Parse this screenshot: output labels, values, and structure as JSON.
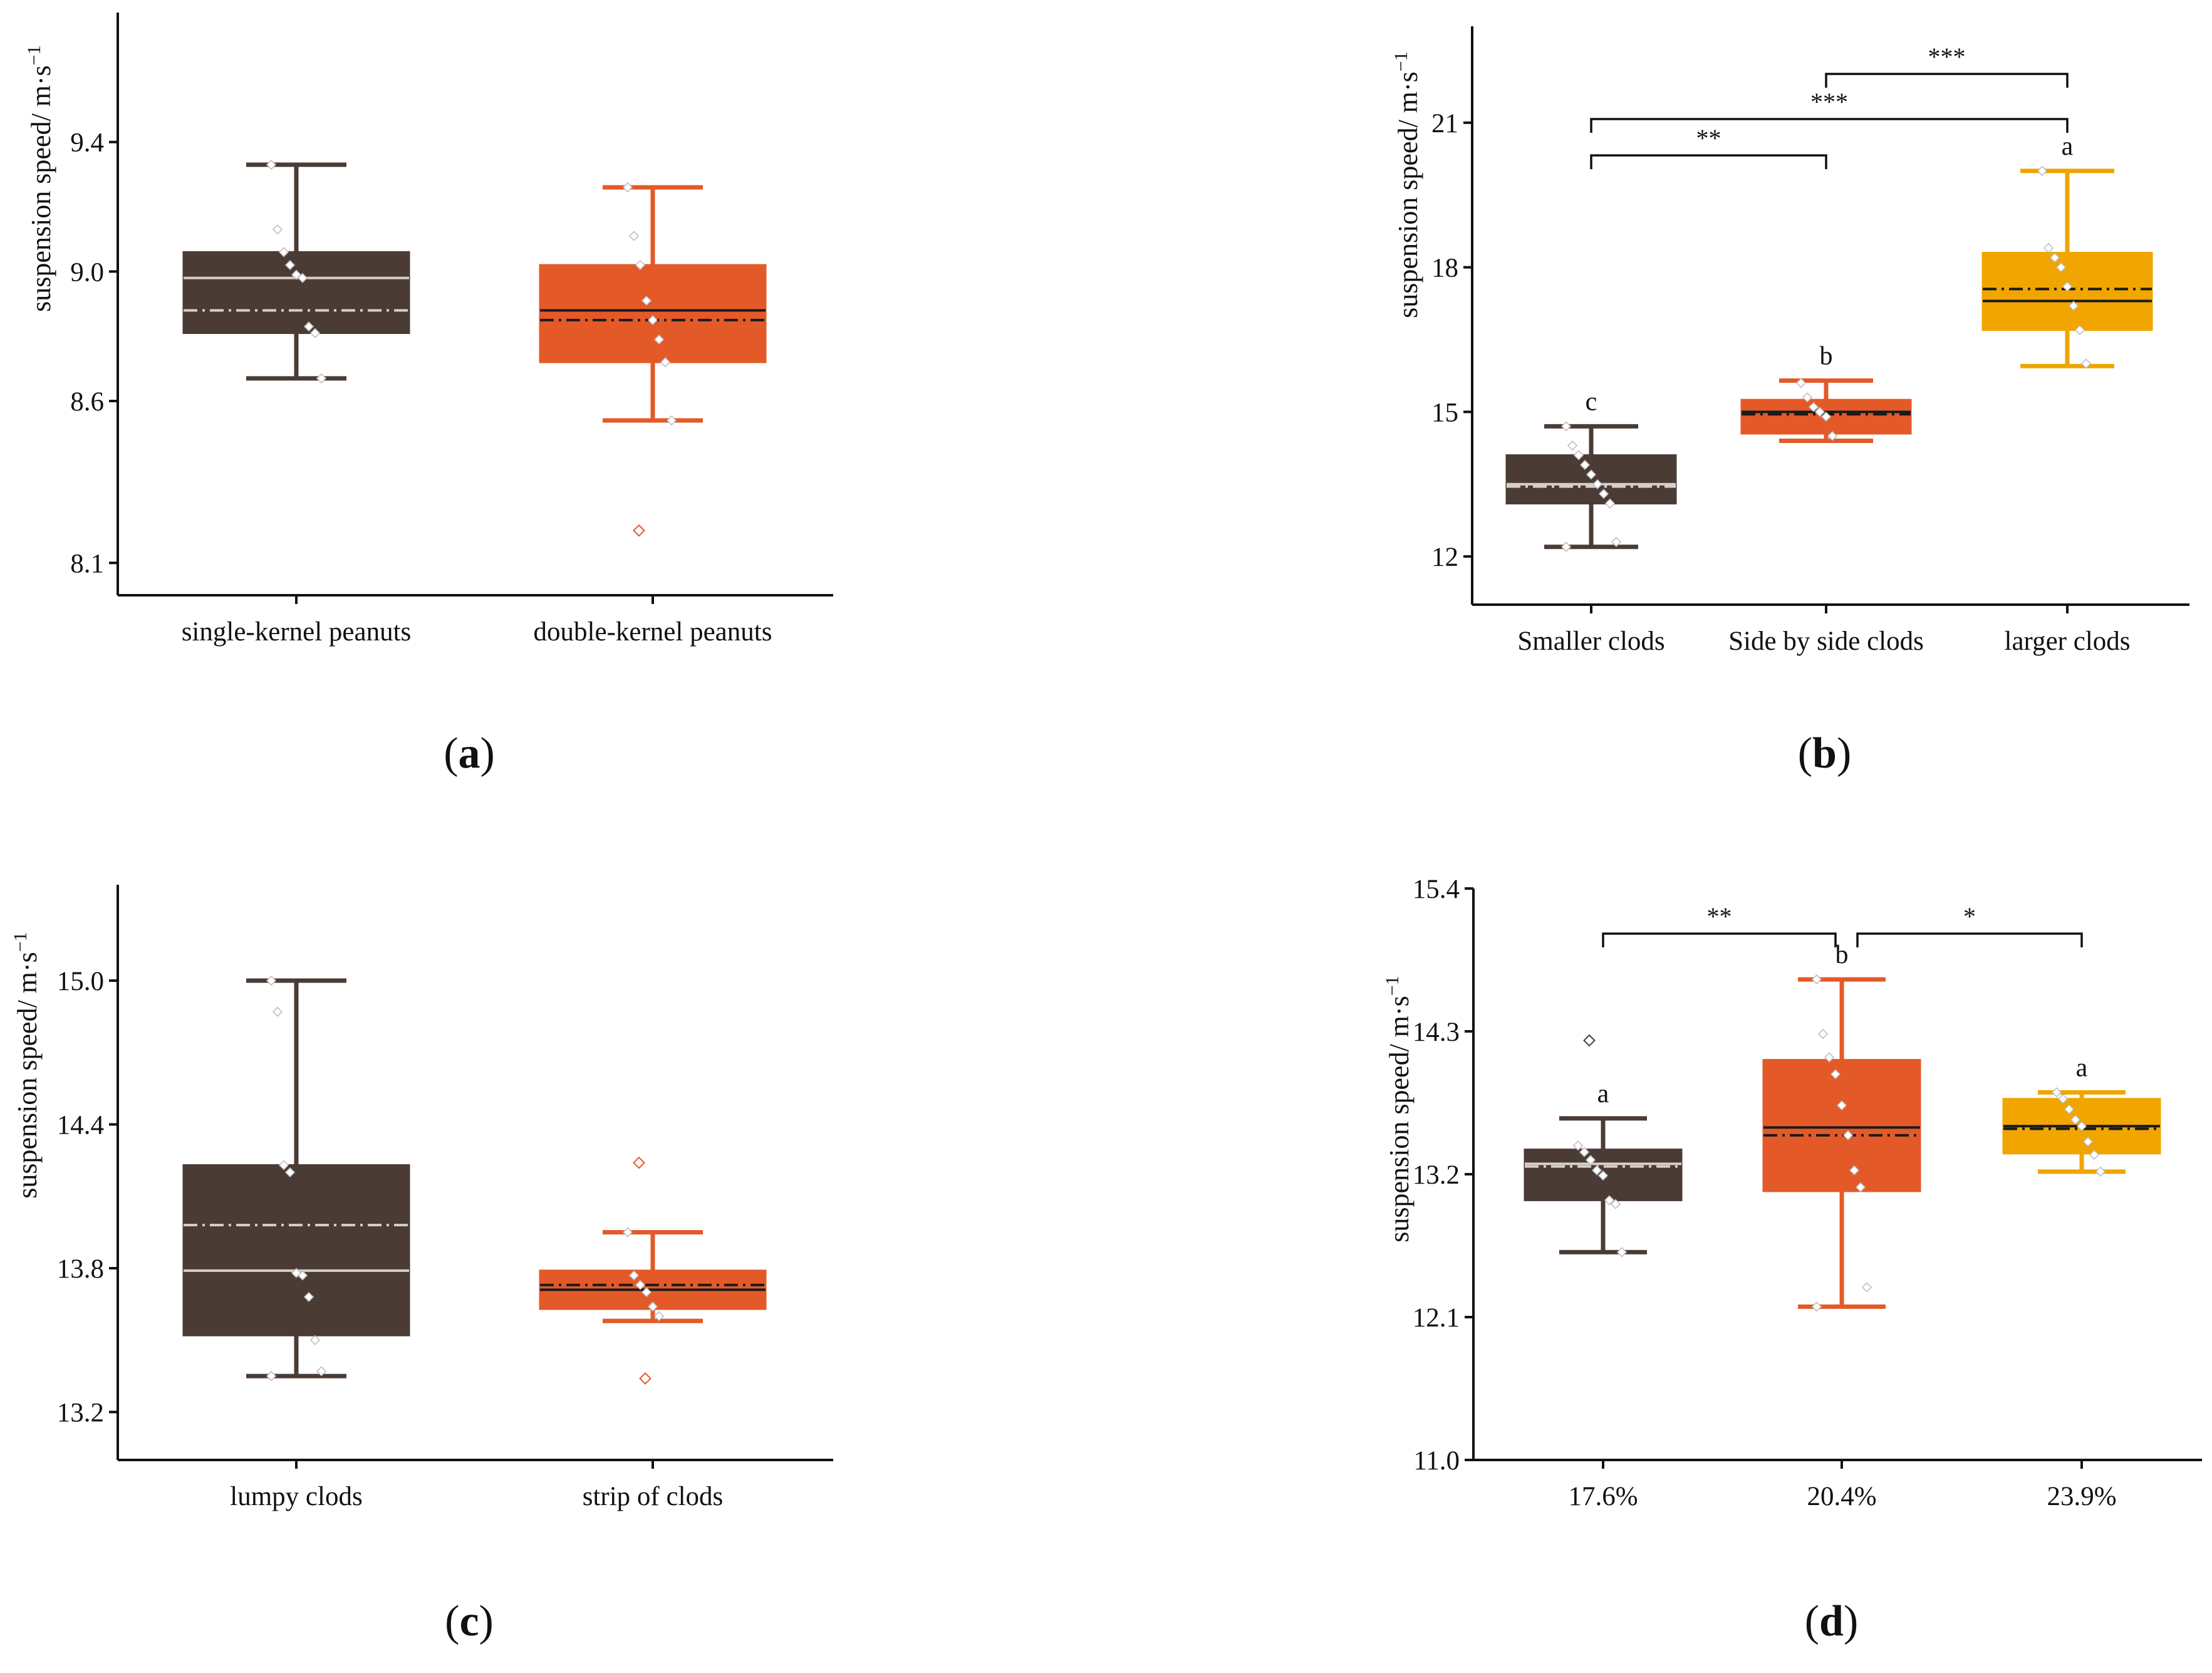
{
  "chart_data": [
    {
      "panel": "a",
      "type": "box",
      "caption_letter": "a",
      "ylabel": "suspension speed/ m·s",
      "ylabel_exponent": "−1",
      "ylim": [
        8.0,
        9.8
      ],
      "yticks": [
        8.1,
        8.6,
        9.0,
        9.4
      ],
      "ytick_labels": [
        "8.1",
        "8.6",
        "9.0",
        "9.4"
      ],
      "categories": [
        "single-kernel peanuts",
        "double-kernel peanuts"
      ],
      "boxes": [
        {
          "name": "single-kernel peanuts",
          "color": "#4a3b35",
          "median_color": "#d8d0c8",
          "mean_color": "#d8d0c8",
          "whisker_low": 8.67,
          "q1": 8.81,
          "median": 8.98,
          "mean": 8.88,
          "q3": 9.06,
          "whisker_high": 9.33,
          "points": [
            9.33,
            9.13,
            9.06,
            9.02,
            8.99,
            8.98,
            8.83,
            8.81,
            8.67
          ],
          "outliers": []
        },
        {
          "name": "double-kernel peanuts",
          "color": "#e35a28",
          "median_color": "#1a1a1a",
          "mean_color": "#1a1a1a",
          "whisker_low": 8.54,
          "q1": 8.72,
          "median": 8.88,
          "mean": 8.85,
          "q3": 9.02,
          "whisker_high": 9.26,
          "points": [
            9.26,
            9.11,
            9.02,
            8.91,
            8.85,
            8.79,
            8.72,
            8.54
          ],
          "outliers": [
            8.2
          ]
        }
      ],
      "significance": [],
      "letters": []
    },
    {
      "panel": "b",
      "type": "box",
      "caption_letter": "b",
      "ylabel": "suspension speed/ m·s",
      "ylabel_exponent": "−1",
      "ylim": [
        11.0,
        23.0
      ],
      "yticks": [
        12,
        15,
        18,
        21
      ],
      "ytick_labels": [
        "12",
        "15",
        "18",
        "21"
      ],
      "categories": [
        "Smaller clods",
        "Side by side clods",
        "larger clods"
      ],
      "boxes": [
        {
          "name": "Smaller clods",
          "color": "#4a3b35",
          "median_color": "#d8d0c8",
          "mean_color": "#d8d0c8",
          "whisker_low": 12.2,
          "q1": 13.1,
          "median": 13.5,
          "mean": 13.45,
          "q3": 14.1,
          "whisker_high": 14.7,
          "points": [
            14.7,
            14.3,
            14.1,
            13.9,
            13.7,
            13.5,
            13.3,
            13.1,
            12.3,
            12.2
          ],
          "outliers": []
        },
        {
          "name": "Side by side clods",
          "color": "#e35a28",
          "median_color": "#1a1a1a",
          "mean_color": "#1a1a1a",
          "whisker_low": 14.4,
          "q1": 14.55,
          "median": 15.0,
          "mean": 14.95,
          "q3": 15.25,
          "whisker_high": 15.65,
          "points": [
            15.6,
            15.3,
            15.1,
            15.0,
            14.9,
            14.5
          ],
          "outliers": []
        },
        {
          "name": "larger clods",
          "color": "#f0a500",
          "median_color": "#1a1a1a",
          "mean_color": "#1a1a1a",
          "whisker_low": 15.95,
          "q1": 16.7,
          "median": 17.3,
          "mean": 17.55,
          "q3": 18.3,
          "whisker_high": 20.0,
          "points": [
            20.0,
            18.4,
            18.2,
            18.0,
            17.6,
            17.2,
            16.7,
            16.0
          ],
          "outliers": []
        }
      ],
      "significance": [
        {
          "from": 0,
          "to": 1,
          "label": "**"
        },
        {
          "from": 0,
          "to": 2,
          "label": "***"
        },
        {
          "from": 1,
          "to": 2,
          "label": "***"
        }
      ],
      "letters": [
        "c",
        "b",
        "a"
      ]
    },
    {
      "panel": "c",
      "type": "box",
      "caption_letter": "c",
      "ylabel": "suspension speed/ m·s",
      "ylabel_exponent": "−1",
      "ylim": [
        13.0,
        15.4
      ],
      "yticks": [
        13.2,
        13.8,
        14.4,
        15.0
      ],
      "ytick_labels": [
        "13.2",
        "13.8",
        "14.4",
        "15.0"
      ],
      "categories": [
        "lumpy clods",
        "strip of clods"
      ],
      "boxes": [
        {
          "name": "lumpy clods",
          "color": "#4a3b35",
          "median_color": "#d8d0c8",
          "mean_color": "#d8d0c8",
          "whisker_low": 13.35,
          "q1": 13.52,
          "median": 13.79,
          "mean": 13.98,
          "q3": 14.23,
          "whisker_high": 15.0,
          "points": [
            15.0,
            14.87,
            14.23,
            14.2,
            13.78,
            13.77,
            13.68,
            13.5,
            13.37,
            13.35
          ],
          "outliers": []
        },
        {
          "name": "strip of clods",
          "color": "#e35a28",
          "median_color": "#1a1a1a",
          "mean_color": "#1a1a1a",
          "whisker_low": 13.58,
          "q1": 13.63,
          "median": 13.71,
          "mean": 13.73,
          "q3": 13.79,
          "whisker_high": 13.95,
          "points": [
            13.95,
            13.77,
            13.73,
            13.7,
            13.64,
            13.6
          ],
          "outliers": [
            14.24,
            13.34
          ]
        }
      ],
      "significance": [],
      "letters": []
    },
    {
      "panel": "d",
      "type": "box",
      "caption_letter": "d",
      "ylabel": "suspension speed/ m·s",
      "ylabel_exponent": "−1",
      "ylim": [
        11.0,
        15.4
      ],
      "yticks": [
        11.0,
        12.1,
        13.2,
        14.3,
        15.4
      ],
      "ytick_labels": [
        "11.0",
        "12.1",
        "13.2",
        "14.3",
        "15.4"
      ],
      "categories": [
        "17.6%",
        "20.4%",
        "23.9%"
      ],
      "boxes": [
        {
          "name": "17.6%",
          "color": "#4a3b35",
          "median_color": "#d8d0c8",
          "mean_color": "#d8d0c8",
          "whisker_low": 12.6,
          "q1": 13.0,
          "median": 13.28,
          "mean": 13.26,
          "q3": 13.39,
          "whisker_high": 13.63,
          "points": [
            13.42,
            13.37,
            13.31,
            13.23,
            13.19,
            13.0,
            12.97,
            12.6
          ],
          "outliers": [
            14.23
          ]
        },
        {
          "name": "20.4%",
          "color": "#e35a28",
          "median_color": "#1a1a1a",
          "mean_color": "#1a1a1a",
          "whisker_low": 12.18,
          "q1": 13.07,
          "median": 13.56,
          "mean": 13.5,
          "q3": 14.08,
          "whisker_high": 14.7,
          "points": [
            14.7,
            14.28,
            14.1,
            13.97,
            13.73,
            13.5,
            13.23,
            13.1,
            12.33,
            12.18
          ],
          "outliers": []
        },
        {
          "name": "23.9%",
          "color": "#f0a500",
          "median_color": "#1a1a1a",
          "mean_color": "#1a1a1a",
          "whisker_low": 13.22,
          "q1": 13.36,
          "median": 13.57,
          "mean": 13.55,
          "q3": 13.78,
          "whisker_high": 13.83,
          "points": [
            13.83,
            13.78,
            13.7,
            13.62,
            13.57,
            13.45,
            13.35,
            13.22
          ],
          "outliers": []
        }
      ],
      "significance": [
        {
          "from": 0,
          "to": 1,
          "label": "**"
        },
        {
          "from": 1,
          "to": 2,
          "label": "*"
        }
      ],
      "letters": [
        "a",
        "b",
        "a"
      ]
    }
  ]
}
